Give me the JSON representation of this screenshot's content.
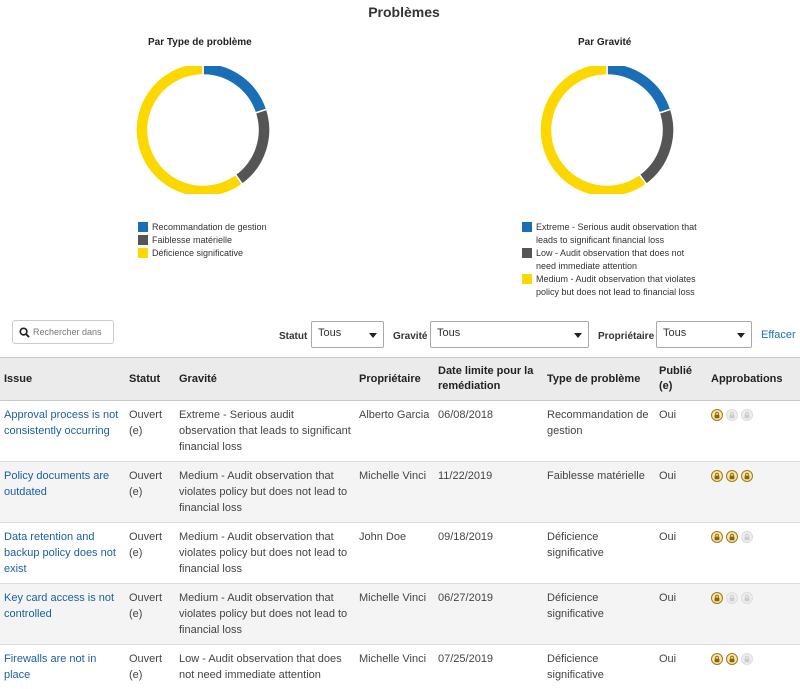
{
  "page": {
    "title": "Problèmes"
  },
  "charts": {
    "type_chart": {
      "title": "Par Type de problème"
    },
    "gravity_chart": {
      "title": "Par Gravité"
    }
  },
  "chart_data": [
    {
      "type": "pie",
      "title": "Par Type de problème",
      "labels": [
        "Recommandation de gestion",
        "Faiblesse matérielle",
        "Déficience significative"
      ],
      "values": [
        1,
        1,
        3
      ],
      "colors": [
        "#1a6eb5",
        "#555555",
        "#fcd800"
      ],
      "legend": "bottom"
    },
    {
      "type": "pie",
      "title": "Par Gravité",
      "labels": [
        "Extreme - Serious audit observation that leads to significant financial loss",
        "Low - Audit observation that does not need immediate attention",
        "Medium - Audit observation that violates policy but does not lead to financial loss"
      ],
      "values": [
        1,
        1,
        3
      ],
      "colors": [
        "#1a6eb5",
        "#555555",
        "#fcd800"
      ],
      "legend": "bottom"
    }
  ],
  "filters": {
    "search_placeholder": "Rechercher dans",
    "statut_label": "Statut",
    "statut_value": "Tous",
    "gravite_label": "Gravité",
    "gravite_value": "Tous",
    "proprietaire_label": "Propriétaire",
    "proprietaire_value": "Tous",
    "clear_label": "Effacer"
  },
  "table": {
    "headers": {
      "issue": "Issue",
      "statut": "Statut",
      "gravite": "Gravité",
      "proprietaire": "Propriétaire",
      "date": "Date limite pour la remédiation",
      "type": "Type de problème",
      "publie": "Publié (e)",
      "approbations": "Approbations"
    },
    "rows": [
      {
        "issue": "Approval process is not consistently occurring",
        "statut": "Ouvert (e)",
        "gravite": "Extreme - Serious audit observation that leads to significant financial loss",
        "proprietaire": "Alberto Garcia",
        "date": "06/08/2018",
        "type": "Recommandation de gestion",
        "publie": "Oui",
        "approvals": [
          true,
          false,
          false
        ]
      },
      {
        "issue": "Policy documents are outdated",
        "statut": "Ouvert (e)",
        "gravite": "Medium - Audit observation that violates policy but does not lead to financial loss",
        "proprietaire": "Michelle Vinci",
        "date": "11/22/2019",
        "type": "Faiblesse matérielle",
        "publie": "Oui",
        "approvals": [
          true,
          true,
          true
        ]
      },
      {
        "issue": "Data retention and backup policy does not exist",
        "statut": "Ouvert (e)",
        "gravite": "Medium - Audit observation that violates policy but does not lead to financial loss",
        "proprietaire": "John Doe",
        "date": "09/18/2019",
        "type": "Déficience significative",
        "publie": "Oui",
        "approvals": [
          true,
          true,
          false
        ]
      },
      {
        "issue": "Key card access is not controlled",
        "statut": "Ouvert (e)",
        "gravite": "Medium - Audit observation that violates policy but does not lead to financial loss",
        "proprietaire": "Michelle Vinci",
        "date": "06/27/2019",
        "type": "Déficience significative",
        "publie": "Oui",
        "approvals": [
          true,
          false,
          false
        ]
      },
      {
        "issue": "Firewalls are not in place",
        "statut": "Ouvert (e)",
        "gravite": "Low - Audit observation that does not need immediate attention",
        "proprietaire": "Michelle Vinci",
        "date": "07/25/2019",
        "type": "Déficience significative",
        "publie": "Oui",
        "approvals": [
          true,
          true,
          false
        ]
      }
    ]
  }
}
